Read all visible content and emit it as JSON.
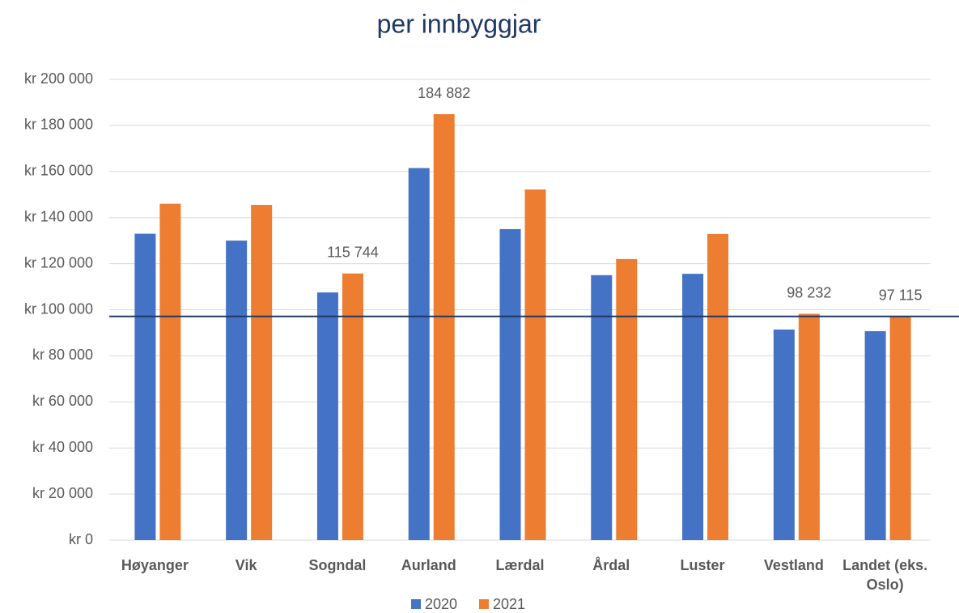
{
  "chart_data": {
    "type": "bar",
    "title": "per innbyggjar",
    "categories": [
      "Høyanger",
      "Vik",
      "Sogndal",
      "Aurland",
      "Lærdal",
      "Årdal",
      "Luster",
      "Vestland",
      "Landet (eks. Oslo)"
    ],
    "series": [
      {
        "name": "2020",
        "color": "#4472c4",
        "values": [
          133000,
          130000,
          107500,
          161500,
          135000,
          115000,
          115600,
          91400,
          90700
        ]
      },
      {
        "name": "2021",
        "color": "#ed7d31",
        "values": [
          146000,
          145500,
          115744,
          184882,
          152200,
          122000,
          132900,
          98232,
          97115
        ],
        "value_labels": [
          null,
          null,
          "115 744",
          "184 882",
          null,
          null,
          null,
          "98 232",
          "97 115"
        ]
      }
    ],
    "reference_line": 97115,
    "ylim": [
      0,
      200000
    ],
    "yticks": [
      {
        "value": 0,
        "label": "kr 0"
      },
      {
        "value": 20000,
        "label": "kr 20 000"
      },
      {
        "value": 40000,
        "label": "kr 40 000"
      },
      {
        "value": 60000,
        "label": "kr 60 000"
      },
      {
        "value": 80000,
        "label": "kr 80 000"
      },
      {
        "value": 100000,
        "label": "kr 100 000"
      },
      {
        "value": 120000,
        "label": "kr 120 000"
      },
      {
        "value": 140000,
        "label": "kr 140 000"
      },
      {
        "value": 160000,
        "label": "kr 160 000"
      },
      {
        "value": 180000,
        "label": "kr 180 000"
      },
      {
        "value": 200000,
        "label": "kr 200 000"
      }
    ],
    "grid": true,
    "legend": "bottom"
  }
}
